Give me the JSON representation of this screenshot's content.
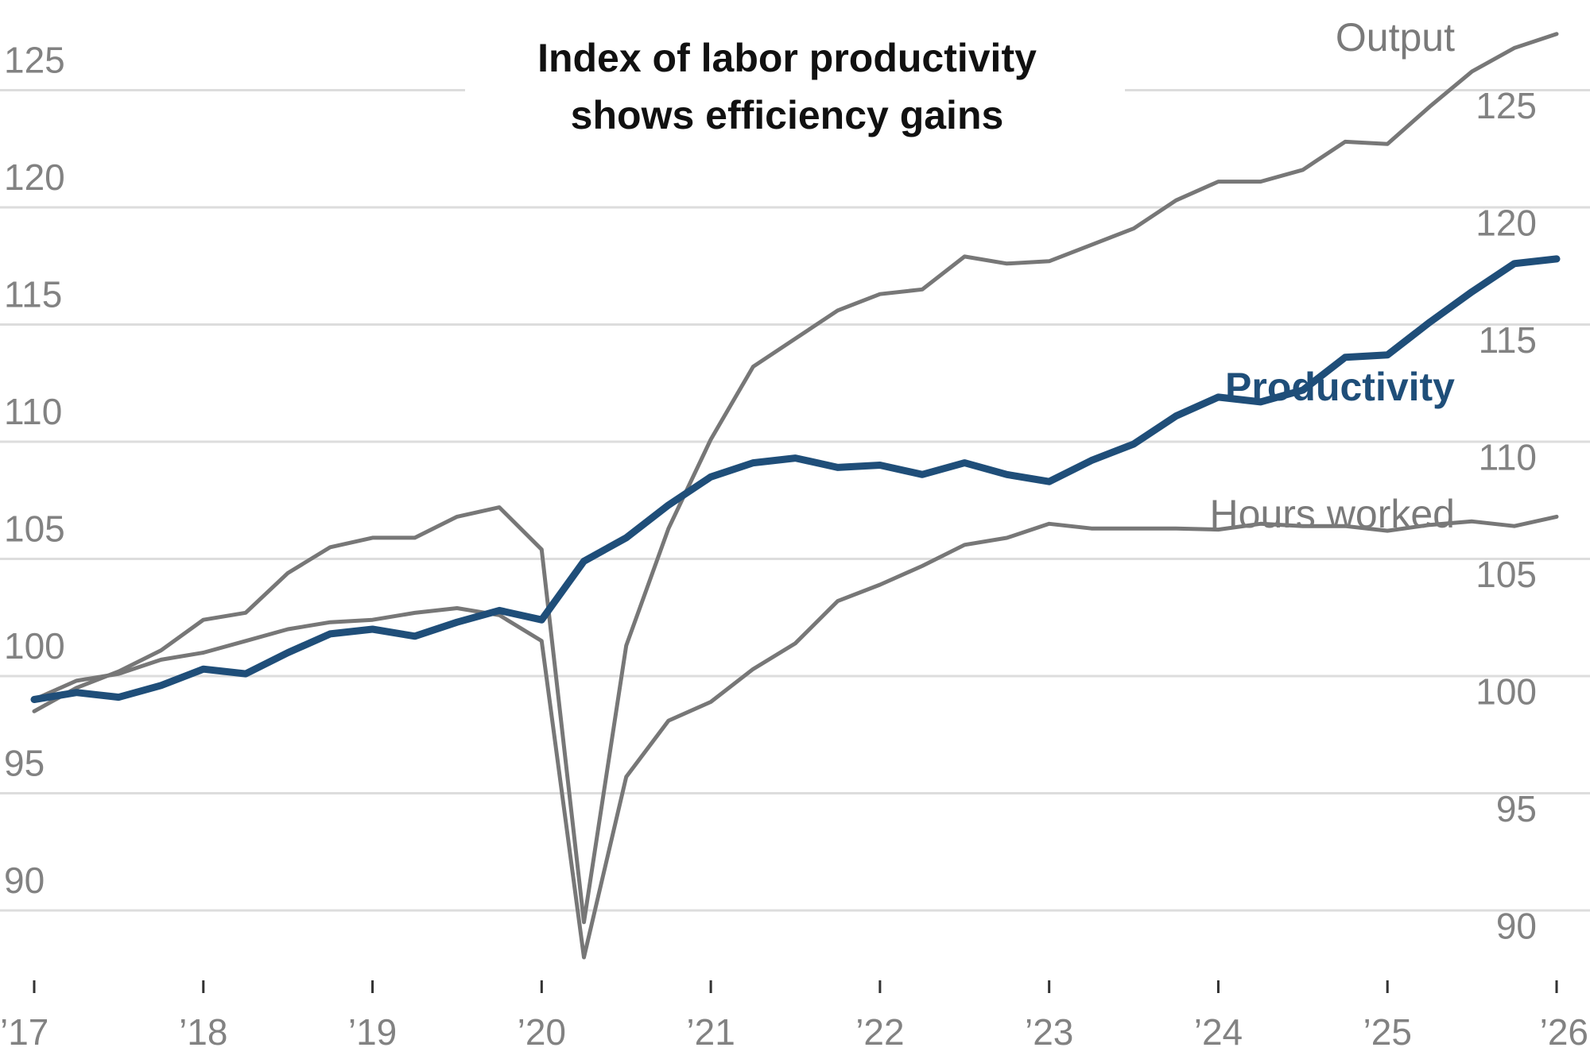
{
  "chart_data": {
    "type": "line",
    "title": "Index of labor productivity shows efficiency gains",
    "title_lines": [
      "Index of labor productivity",
      "shows efficiency gains"
    ],
    "x_labels": [
      "’17",
      "’18",
      "’19",
      "’20",
      "’21",
      "’22",
      "’23",
      "’24",
      "’25",
      "’26"
    ],
    "x_range": [
      2017,
      2026
    ],
    "left_axis": {
      "ticks": [
        90,
        95,
        100,
        105,
        110,
        115,
        120,
        125
      ],
      "range": [
        88,
        128
      ]
    },
    "right_axis": {
      "ticks": [
        90,
        95,
        100,
        105,
        110,
        115,
        120,
        125
      ],
      "range": [
        88.9,
        128.9
      ]
    },
    "grid": true,
    "series": [
      {
        "name": "Output",
        "axis": "left",
        "color": "#777777",
        "x": [
          2017.0,
          2017.25,
          2017.5,
          2017.75,
          2018.0,
          2018.25,
          2018.5,
          2018.75,
          2019.0,
          2019.25,
          2019.5,
          2019.75,
          2020.0,
          2020.25,
          2020.5,
          2020.75,
          2021.0,
          2021.25,
          2021.5,
          2021.75,
          2022.0,
          2022.25,
          2022.5,
          2022.75,
          2023.0,
          2023.25,
          2023.5,
          2023.75,
          2024.0,
          2024.25,
          2024.5,
          2024.75,
          2025.0,
          2025.25,
          2025.5,
          2025.75,
          2026.0
        ],
        "values": [
          98.5,
          99.5,
          100.2,
          101.1,
          102.4,
          102.7,
          104.4,
          105.5,
          105.9,
          105.9,
          106.8,
          107.2,
          105.4,
          89.5,
          101.3,
          106.3,
          110.1,
          113.2,
          114.4,
          115.6,
          116.3,
          116.5,
          117.9,
          117.6,
          117.7,
          118.4,
          119.1,
          120.3,
          121.1,
          121.1,
          121.6,
          122.8,
          122.7,
          124.3,
          125.8,
          126.8,
          127.4
        ]
      },
      {
        "name": "Productivity",
        "axis": "left",
        "color": "#1f4e79",
        "x": [
          2017.0,
          2017.25,
          2017.5,
          2017.75,
          2018.0,
          2018.25,
          2018.5,
          2018.75,
          2019.0,
          2019.25,
          2019.5,
          2019.75,
          2020.0,
          2020.25,
          2020.5,
          2020.75,
          2021.0,
          2021.25,
          2021.5,
          2021.75,
          2022.0,
          2022.25,
          2022.5,
          2022.75,
          2023.0,
          2023.25,
          2023.5,
          2023.75,
          2024.0,
          2024.25,
          2024.5,
          2024.75,
          2025.0,
          2025.25,
          2025.5,
          2025.75,
          2026.0
        ],
        "values": [
          99.0,
          99.3,
          99.1,
          99.6,
          100.3,
          100.1,
          101.0,
          101.8,
          102.0,
          101.7,
          102.3,
          102.8,
          102.4,
          104.9,
          105.9,
          107.3,
          108.5,
          109.1,
          109.3,
          108.9,
          109.0,
          108.6,
          109.1,
          108.6,
          108.3,
          109.2,
          109.9,
          111.1,
          111.9,
          111.7,
          112.2,
          113.6,
          113.7,
          115.1,
          116.4,
          117.6,
          117.8
        ]
      },
      {
        "name": "Hours worked",
        "axis": "right",
        "color": "#777777",
        "x": [
          2017.0,
          2017.25,
          2017.5,
          2017.75,
          2018.0,
          2018.25,
          2018.5,
          2018.75,
          2019.0,
          2019.25,
          2019.5,
          2019.75,
          2020.0,
          2020.25,
          2020.5,
          2020.75,
          2021.0,
          2021.25,
          2021.5,
          2021.75,
          2022.0,
          2022.25,
          2022.5,
          2022.75,
          2023.0,
          2023.25,
          2023.5,
          2023.75,
          2024.0,
          2024.25,
          2024.5,
          2024.75,
          2025.0,
          2025.25,
          2025.5,
          2025.75,
          2026.0
        ],
        "values": [
          99.9,
          100.7,
          101.0,
          101.6,
          101.9,
          102.4,
          102.9,
          103.2,
          103.3,
          103.6,
          103.8,
          103.5,
          102.4,
          88.9,
          96.6,
          99.0,
          99.8,
          101.2,
          102.3,
          104.1,
          104.8,
          105.6,
          106.5,
          106.8,
          107.4,
          107.2,
          107.2,
          107.2,
          107.15,
          107.4,
          107.3,
          107.3,
          107.1,
          107.35,
          107.5,
          107.3,
          107.7
        ]
      }
    ]
  }
}
